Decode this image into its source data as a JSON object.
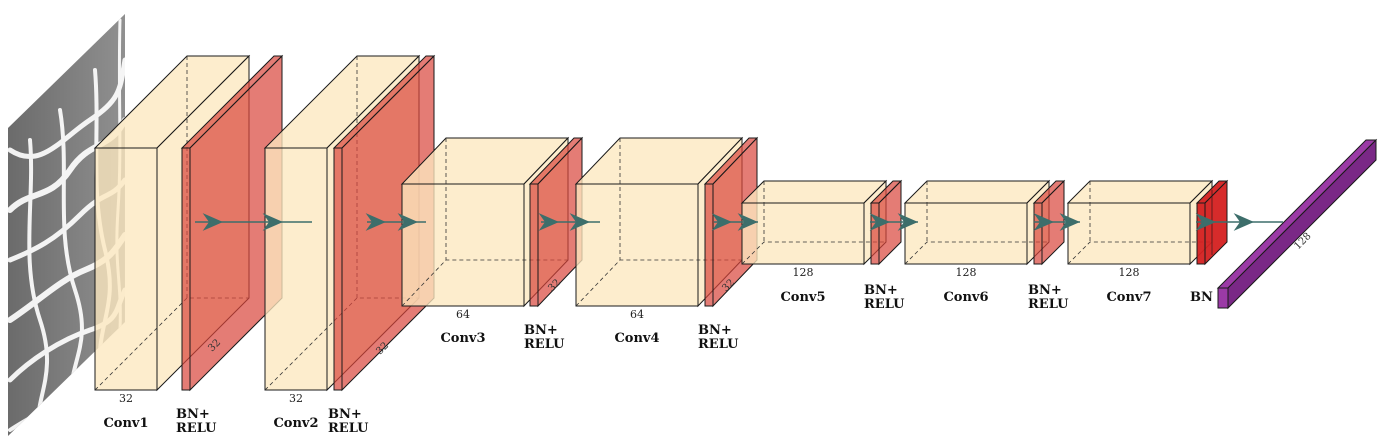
{
  "blocks": [
    {
      "id": "conv1",
      "kind": "conv",
      "label": "Conv1",
      "channels": "32"
    },
    {
      "id": "bn1",
      "kind": "bn",
      "label_lines": [
        "BN+",
        "RELU"
      ],
      "channels": "32"
    },
    {
      "id": "conv2",
      "kind": "conv",
      "label": "Conv2",
      "channels": "32"
    },
    {
      "id": "bn2",
      "kind": "bn",
      "label_lines": [
        "BN+",
        "RELU"
      ],
      "channels": "32"
    },
    {
      "id": "conv3",
      "kind": "conv",
      "label": "Conv3",
      "channels": "64"
    },
    {
      "id": "bn3",
      "kind": "bn",
      "label_lines": [
        "BN+",
        "RELU"
      ],
      "channels": "32"
    },
    {
      "id": "conv4",
      "kind": "conv",
      "label": "Conv4",
      "channels": "64"
    },
    {
      "id": "bn4",
      "kind": "bn",
      "label_lines": [
        "BN+",
        "RELU"
      ],
      "channels": "32"
    },
    {
      "id": "conv5",
      "kind": "conv",
      "label": "Conv5",
      "channels": "128"
    },
    {
      "id": "bn5",
      "kind": "bn",
      "label_lines": [
        "BN+",
        "RELU"
      ],
      "channels": ""
    },
    {
      "id": "conv6",
      "kind": "conv",
      "label": "Conv6",
      "channels": "128"
    },
    {
      "id": "bn6",
      "kind": "bn",
      "label_lines": [
        "BN+",
        "RELU"
      ],
      "channels": ""
    },
    {
      "id": "conv7",
      "kind": "conv",
      "label": "Conv7",
      "channels": "128"
    },
    {
      "id": "bn7",
      "kind": "bn-final",
      "label_lines": [
        "BN"
      ],
      "channels": ""
    },
    {
      "id": "output",
      "kind": "output",
      "label": "",
      "channels": "128"
    }
  ],
  "colors": {
    "conv_fill": "#fde8bf",
    "bn_fill": "#d9453a",
    "bn_final_fill": "#d42020",
    "output_fill": "#9b3aa6",
    "arrow": "#3d6e6b",
    "edge": "#1a1a1a"
  },
  "icons": {
    "input_image": "grayscale-mesh-pattern-image",
    "connection": "teal-right-arrow"
  }
}
